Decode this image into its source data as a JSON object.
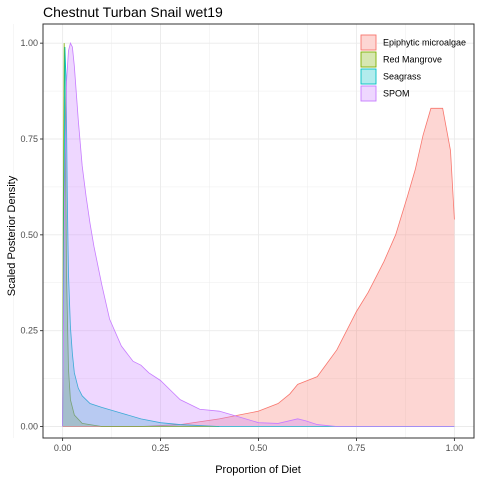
{
  "chart_data": {
    "type": "area",
    "title": "Chestnut Turban Snail wet19",
    "xlabel": "Proportion of Diet",
    "ylabel": "Scaled Posterior Density",
    "xlim": [
      0,
      1
    ],
    "ylim": [
      0,
      1
    ],
    "x_ticks": [
      "0.00",
      "0.25",
      "0.50",
      "0.75",
      "1.00"
    ],
    "y_ticks": [
      "0.00",
      "0.25",
      "0.50",
      "0.75",
      "1.00"
    ],
    "grid": true,
    "legend_position": "top-right",
    "series": [
      {
        "name": "Epiphytic microalgae",
        "fill": "#F8766D",
        "stroke": "#F8766D",
        "points": [
          [
            0.0,
            0.0
          ],
          [
            0.2,
            0.0
          ],
          [
            0.3,
            0.005
          ],
          [
            0.4,
            0.02
          ],
          [
            0.45,
            0.03
          ],
          [
            0.5,
            0.04
          ],
          [
            0.55,
            0.06
          ],
          [
            0.58,
            0.085
          ],
          [
            0.6,
            0.11
          ],
          [
            0.65,
            0.13
          ],
          [
            0.7,
            0.2
          ],
          [
            0.75,
            0.3
          ],
          [
            0.78,
            0.35
          ],
          [
            0.82,
            0.43
          ],
          [
            0.85,
            0.5
          ],
          [
            0.88,
            0.6
          ],
          [
            0.9,
            0.67
          ],
          [
            0.92,
            0.76
          ],
          [
            0.94,
            0.83
          ],
          [
            0.97,
            0.83
          ],
          [
            0.99,
            0.72
          ],
          [
            1.0,
            0.54
          ]
        ]
      },
      {
        "name": "Red Mangrove",
        "fill": "#7CAE00",
        "stroke": "#7CAE00",
        "points": [
          [
            0.0,
            0.0
          ],
          [
            0.002,
            0.6
          ],
          [
            0.004,
            1.0
          ],
          [
            0.007,
            0.8
          ],
          [
            0.01,
            0.4
          ],
          [
            0.015,
            0.15
          ],
          [
            0.02,
            0.07
          ],
          [
            0.03,
            0.03
          ],
          [
            0.05,
            0.008
          ],
          [
            0.1,
            0.0
          ],
          [
            0.4,
            0.0
          ]
        ]
      },
      {
        "name": "Seagrass",
        "fill": "#00BFC4",
        "stroke": "#00BFC4",
        "points": [
          [
            0.0,
            0.0
          ],
          [
            0.003,
            0.5
          ],
          [
            0.006,
            0.99
          ],
          [
            0.009,
            0.9
          ],
          [
            0.012,
            0.6
          ],
          [
            0.015,
            0.4
          ],
          [
            0.02,
            0.26
          ],
          [
            0.025,
            0.19
          ],
          [
            0.03,
            0.14
          ],
          [
            0.04,
            0.1
          ],
          [
            0.05,
            0.08
          ],
          [
            0.07,
            0.06
          ],
          [
            0.1,
            0.05
          ],
          [
            0.15,
            0.035
          ],
          [
            0.2,
            0.02
          ],
          [
            0.25,
            0.01
          ],
          [
            0.3,
            0.005
          ],
          [
            0.4,
            0.0
          ],
          [
            1.0,
            0.0
          ]
        ]
      },
      {
        "name": "SPOM",
        "fill": "#C77CFF",
        "stroke": "#C77CFF",
        "points": [
          [
            0.0,
            0.0
          ],
          [
            0.005,
            0.6
          ],
          [
            0.01,
            0.9
          ],
          [
            0.015,
            0.98
          ],
          [
            0.02,
            1.0
          ],
          [
            0.025,
            0.99
          ],
          [
            0.03,
            0.94
          ],
          [
            0.04,
            0.8
          ],
          [
            0.05,
            0.68
          ],
          [
            0.06,
            0.6
          ],
          [
            0.07,
            0.53
          ],
          [
            0.08,
            0.47
          ],
          [
            0.1,
            0.37
          ],
          [
            0.12,
            0.28
          ],
          [
            0.15,
            0.21
          ],
          [
            0.18,
            0.17
          ],
          [
            0.2,
            0.16
          ],
          [
            0.22,
            0.14
          ],
          [
            0.25,
            0.12
          ],
          [
            0.28,
            0.09
          ],
          [
            0.3,
            0.07
          ],
          [
            0.33,
            0.055
          ],
          [
            0.35,
            0.045
          ],
          [
            0.4,
            0.04
          ],
          [
            0.45,
            0.025
          ],
          [
            0.5,
            0.01
          ],
          [
            0.55,
            0.008
          ],
          [
            0.6,
            0.02
          ],
          [
            0.62,
            0.015
          ],
          [
            0.65,
            0.005
          ],
          [
            0.7,
            0.0
          ],
          [
            1.0,
            0.0
          ]
        ]
      }
    ]
  }
}
